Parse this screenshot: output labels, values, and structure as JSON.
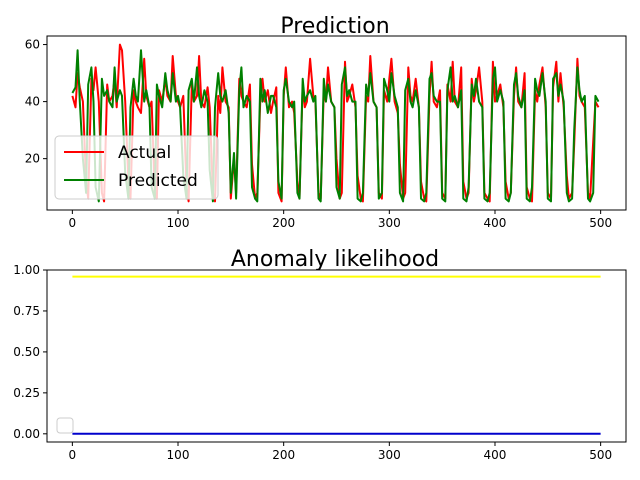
{
  "chart_data": [
    {
      "type": "line",
      "title": "Prediction",
      "xlabel": "",
      "ylabel": "",
      "xlim": [
        -24,
        524
      ],
      "ylim": [
        2,
        63
      ],
      "xticks": [
        0,
        100,
        200,
        300,
        400,
        500
      ],
      "yticks": [
        20,
        40,
        60
      ],
      "grid": false,
      "legend_position": "lower-left",
      "series": [
        {
          "name": "Actual",
          "color": "#ff0000",
          "x": [
            0,
            3,
            5,
            7,
            10,
            13,
            15,
            18,
            20,
            22,
            25,
            28,
            30,
            33,
            35,
            38,
            40,
            42,
            45,
            47,
            50,
            53,
            55,
            58,
            60,
            62,
            65,
            68,
            70,
            73,
            75,
            78,
            80,
            82,
            85,
            88,
            90,
            93,
            95,
            98,
            100,
            102,
            105,
            108,
            110,
            113,
            115,
            118,
            120,
            122,
            125,
            128,
            130,
            133,
            135,
            138,
            140,
            142,
            145,
            148,
            150,
            153,
            155,
            158,
            160,
            162,
            165,
            168,
            170,
            173,
            175,
            178,
            180,
            182,
            185,
            188,
            190,
            193,
            195,
            198,
            200,
            202,
            205,
            208,
            210,
            213,
            215,
            218,
            220,
            222,
            225,
            228,
            230,
            233,
            235,
            238,
            240,
            242,
            245,
            248,
            250,
            253,
            255,
            258,
            260,
            262,
            265,
            268,
            270,
            273,
            275,
            278,
            280,
            282,
            285,
            288,
            290,
            293,
            295,
            298,
            300,
            302,
            305,
            308,
            310,
            313,
            315,
            318,
            320,
            322,
            325,
            328,
            330,
            333,
            335,
            338,
            340,
            342,
            345,
            348,
            350,
            353,
            355,
            358,
            360,
            362,
            365,
            368,
            370,
            373,
            375,
            378,
            380,
            382,
            385,
            388,
            390,
            393,
            395,
            398,
            400,
            402,
            405,
            408,
            410,
            413,
            415,
            418,
            420,
            422,
            425,
            428,
            430,
            433,
            435,
            438,
            440,
            442,
            445,
            448,
            450,
            453,
            455,
            458,
            460,
            462,
            465,
            468,
            470,
            473,
            475,
            478,
            480,
            482,
            485,
            488,
            490,
            493,
            495,
            498
          ],
          "values": [
            42,
            38,
            50,
            45,
            40,
            12,
            6,
            48,
            44,
            52,
            40,
            8,
            5,
            46,
            40,
            42,
            48,
            38,
            60,
            58,
            40,
            12,
            6,
            44,
            40,
            38,
            36,
            55,
            42,
            38,
            40,
            8,
            6,
            44,
            40,
            48,
            42,
            40,
            56,
            42,
            40,
            38,
            42,
            10,
            5,
            46,
            40,
            42,
            56,
            40,
            38,
            45,
            38,
            8,
            5,
            42,
            36,
            52,
            40,
            38,
            6,
            20,
            8,
            48,
            42,
            40,
            38,
            46,
            18,
            6,
            8,
            42,
            48,
            40,
            44,
            36,
            40,
            45,
            8,
            5,
            42,
            52,
            38,
            40,
            36,
            12,
            6,
            46,
            38,
            40,
            55,
            42,
            40,
            8,
            6,
            44,
            40,
            52,
            40,
            38,
            20,
            6,
            8,
            54,
            40,
            42,
            46,
            38,
            14,
            6,
            5,
            42,
            40,
            56,
            40,
            38,
            8,
            6,
            44,
            40,
            48,
            55,
            40,
            36,
            18,
            6,
            8,
            52,
            42,
            40,
            48,
            38,
            12,
            6,
            5,
            42,
            54,
            40,
            38,
            44,
            8,
            6,
            46,
            40,
            54,
            40,
            38,
            52,
            12,
            6,
            8,
            48,
            40,
            44,
            52,
            40,
            8,
            6,
            5,
            54,
            40,
            42,
            46,
            38,
            12,
            6,
            8,
            42,
            52,
            40,
            38,
            50,
            10,
            6,
            5,
            44,
            40,
            46,
            52,
            38,
            8,
            6,
            45,
            54,
            40,
            50,
            38,
            14,
            6,
            8,
            25,
            55,
            42,
            40,
            38,
            8,
            6,
            26,
            40,
            38
          ]
        },
        {
          "name": "Predicted",
          "color": "#008000",
          "x": [
            0,
            3,
            5,
            7,
            10,
            13,
            15,
            18,
            20,
            22,
            25,
            28,
            30,
            33,
            35,
            38,
            40,
            42,
            45,
            47,
            50,
            53,
            55,
            58,
            60,
            62,
            65,
            68,
            70,
            73,
            75,
            78,
            80,
            82,
            85,
            88,
            90,
            93,
            95,
            98,
            100,
            102,
            105,
            108,
            110,
            113,
            115,
            118,
            120,
            122,
            125,
            128,
            130,
            133,
            135,
            138,
            140,
            142,
            145,
            148,
            150,
            153,
            155,
            158,
            160,
            162,
            165,
            168,
            170,
            173,
            175,
            178,
            180,
            182,
            185,
            188,
            190,
            193,
            195,
            198,
            200,
            202,
            205,
            208,
            210,
            213,
            215,
            218,
            220,
            222,
            225,
            228,
            230,
            233,
            235,
            238,
            240,
            242,
            245,
            248,
            250,
            253,
            255,
            258,
            260,
            262,
            265,
            268,
            270,
            273,
            275,
            278,
            280,
            282,
            285,
            288,
            290,
            293,
            295,
            298,
            300,
            302,
            305,
            308,
            310,
            313,
            315,
            318,
            320,
            322,
            325,
            328,
            330,
            333,
            335,
            338,
            340,
            342,
            345,
            348,
            350,
            353,
            355,
            358,
            360,
            362,
            365,
            368,
            370,
            373,
            375,
            378,
            380,
            382,
            385,
            388,
            390,
            393,
            395,
            398,
            400,
            402,
            405,
            408,
            410,
            413,
            415,
            418,
            420,
            422,
            425,
            428,
            430,
            433,
            435,
            438,
            440,
            442,
            445,
            448,
            450,
            453,
            455,
            458,
            460,
            462,
            465,
            468,
            470,
            473,
            475,
            478,
            480,
            482,
            485,
            488,
            490,
            493,
            495,
            498
          ],
          "values": [
            43,
            45,
            58,
            40,
            20,
            8,
            46,
            52,
            40,
            10,
            5,
            48,
            42,
            44,
            40,
            38,
            52,
            40,
            44,
            42,
            15,
            6,
            38,
            48,
            42,
            40,
            58,
            40,
            44,
            38,
            10,
            6,
            46,
            42,
            38,
            50,
            44,
            40,
            50,
            40,
            42,
            38,
            14,
            6,
            44,
            48,
            40,
            52,
            42,
            38,
            44,
            40,
            16,
            5,
            38,
            50,
            42,
            40,
            44,
            36,
            8,
            22,
            6,
            44,
            52,
            38,
            42,
            40,
            10,
            6,
            5,
            48,
            40,
            44,
            36,
            42,
            42,
            38,
            12,
            6,
            44,
            48,
            40,
            38,
            40,
            8,
            6,
            48,
            40,
            42,
            44,
            40,
            42,
            6,
            5,
            48,
            40,
            46,
            40,
            38,
            10,
            6,
            46,
            52,
            42,
            44,
            40,
            40,
            6,
            5,
            8,
            46,
            42,
            50,
            40,
            38,
            6,
            8,
            48,
            44,
            40,
            50,
            42,
            38,
            8,
            5,
            44,
            48,
            40,
            38,
            44,
            38,
            6,
            5,
            8,
            48,
            50,
            42,
            40,
            40,
            6,
            5,
            44,
            52,
            40,
            42,
            38,
            44,
            6,
            5,
            10,
            46,
            42,
            48,
            40,
            38,
            6,
            5,
            8,
            48,
            52,
            40,
            44,
            40,
            6,
            5,
            8,
            46,
            50,
            42,
            38,
            44,
            6,
            5,
            10,
            48,
            44,
            42,
            50,
            40,
            6,
            5,
            48,
            50,
            42,
            46,
            40,
            8,
            5,
            6,
            30,
            52,
            44,
            40,
            42,
            6,
            5,
            8,
            42,
            40
          ]
        }
      ]
    },
    {
      "type": "line",
      "title": "Anomaly likelihood",
      "xlabel": "",
      "ylabel": "",
      "xlim": [
        -24,
        524
      ],
      "ylim": [
        -0.05,
        1.0
      ],
      "xticks": [
        0,
        100,
        200,
        300,
        400,
        500
      ],
      "yticks": [
        0.0,
        0.25,
        0.5,
        0.75,
        1.0
      ],
      "grid": false,
      "legend_position": "lower-left",
      "legend_empty": true,
      "series": [
        {
          "color": "#ffff00",
          "x": [
            0,
            500
          ],
          "values": [
            0.96,
            0.96
          ]
        },
        {
          "color": "#0000cc",
          "x": [
            0,
            500
          ],
          "values": [
            0.0,
            0.0
          ]
        }
      ]
    }
  ],
  "ticks": {
    "top_x": [
      "0",
      "100",
      "200",
      "300",
      "400",
      "500"
    ],
    "top_y": [
      "20",
      "40",
      "60"
    ],
    "bottom_x": [
      "0",
      "100",
      "200",
      "300",
      "400",
      "500"
    ],
    "bottom_y": [
      "0.00",
      "0.25",
      "0.50",
      "0.75",
      "1.00"
    ]
  }
}
